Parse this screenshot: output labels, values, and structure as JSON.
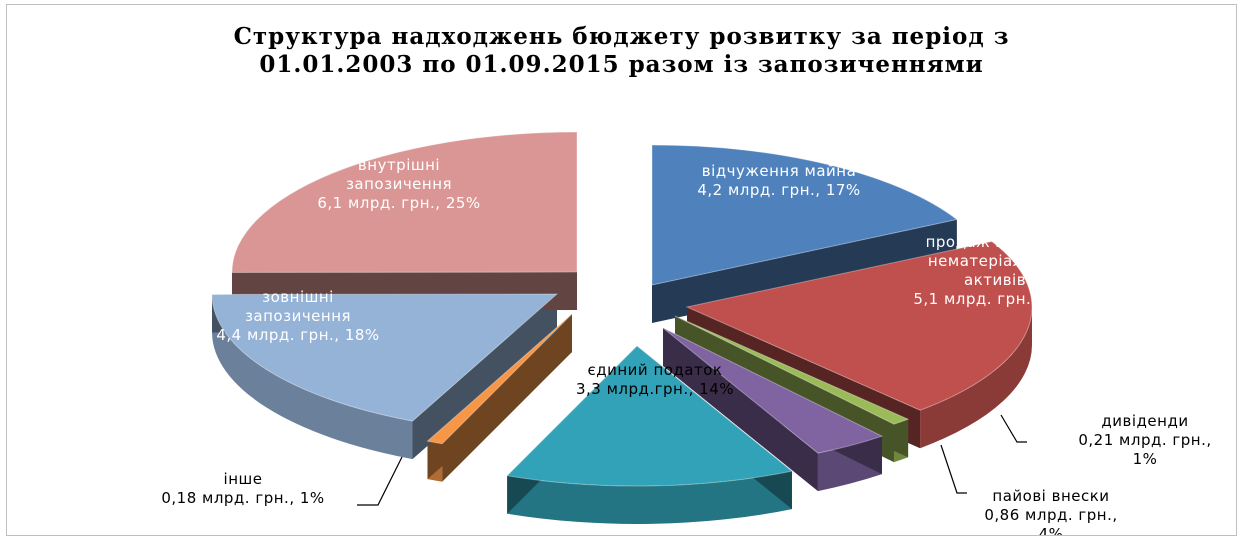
{
  "chart_data": {
    "type": "pie",
    "title_lines": [
      "Структура  надходжень бюджету розвитку за період з",
      "01.01.2003 по 01.09.2015  разом із запозиченнями"
    ],
    "slices": [
      {
        "label_lines": [
          "відчуження майна",
          "4,2 млрд. грн., 17%"
        ],
        "value": 4.2,
        "percent": 17,
        "color": "#4f81bd"
      },
      {
        "label_lines": [
          "продаж землі та",
          "нематеріальних",
          "активів",
          "5,1 млрд. грн., 21%"
        ],
        "value": 5.1,
        "percent": 21,
        "color": "#c0504d"
      },
      {
        "label_lines": [
          "дивіденди",
          "0,21 млрд. грн.,",
          "1%"
        ],
        "value": 0.21,
        "percent": 1,
        "color": "#9bbb59"
      },
      {
        "label_lines": [
          "пайові внески",
          "0,86 млрд. грн.,",
          "4%"
        ],
        "value": 0.86,
        "percent": 4,
        "color": "#8064a2"
      },
      {
        "label_lines": [
          "єдиний податок",
          "3,3 млрд.грн., 14%"
        ],
        "value": 3.3,
        "percent": 14,
        "color": "#31a2b7"
      },
      {
        "label_lines": [
          "інше",
          "0,18 млрд. грн., 1%"
        ],
        "value": 0.18,
        "percent": 1,
        "color": "#f79646"
      },
      {
        "label_lines": [
          "зовнішні",
          "запозичення",
          "4,4 млрд. грн., 18%"
        ],
        "value": 4.4,
        "percent": 18,
        "color": "#95b3d7"
      },
      {
        "label_lines": [
          "внутрішні",
          "запозичення",
          "6,1 млрд. грн., 25%"
        ],
        "value": 6.1,
        "percent": 25,
        "color": "#d99694"
      }
    ],
    "legend": "none"
  }
}
